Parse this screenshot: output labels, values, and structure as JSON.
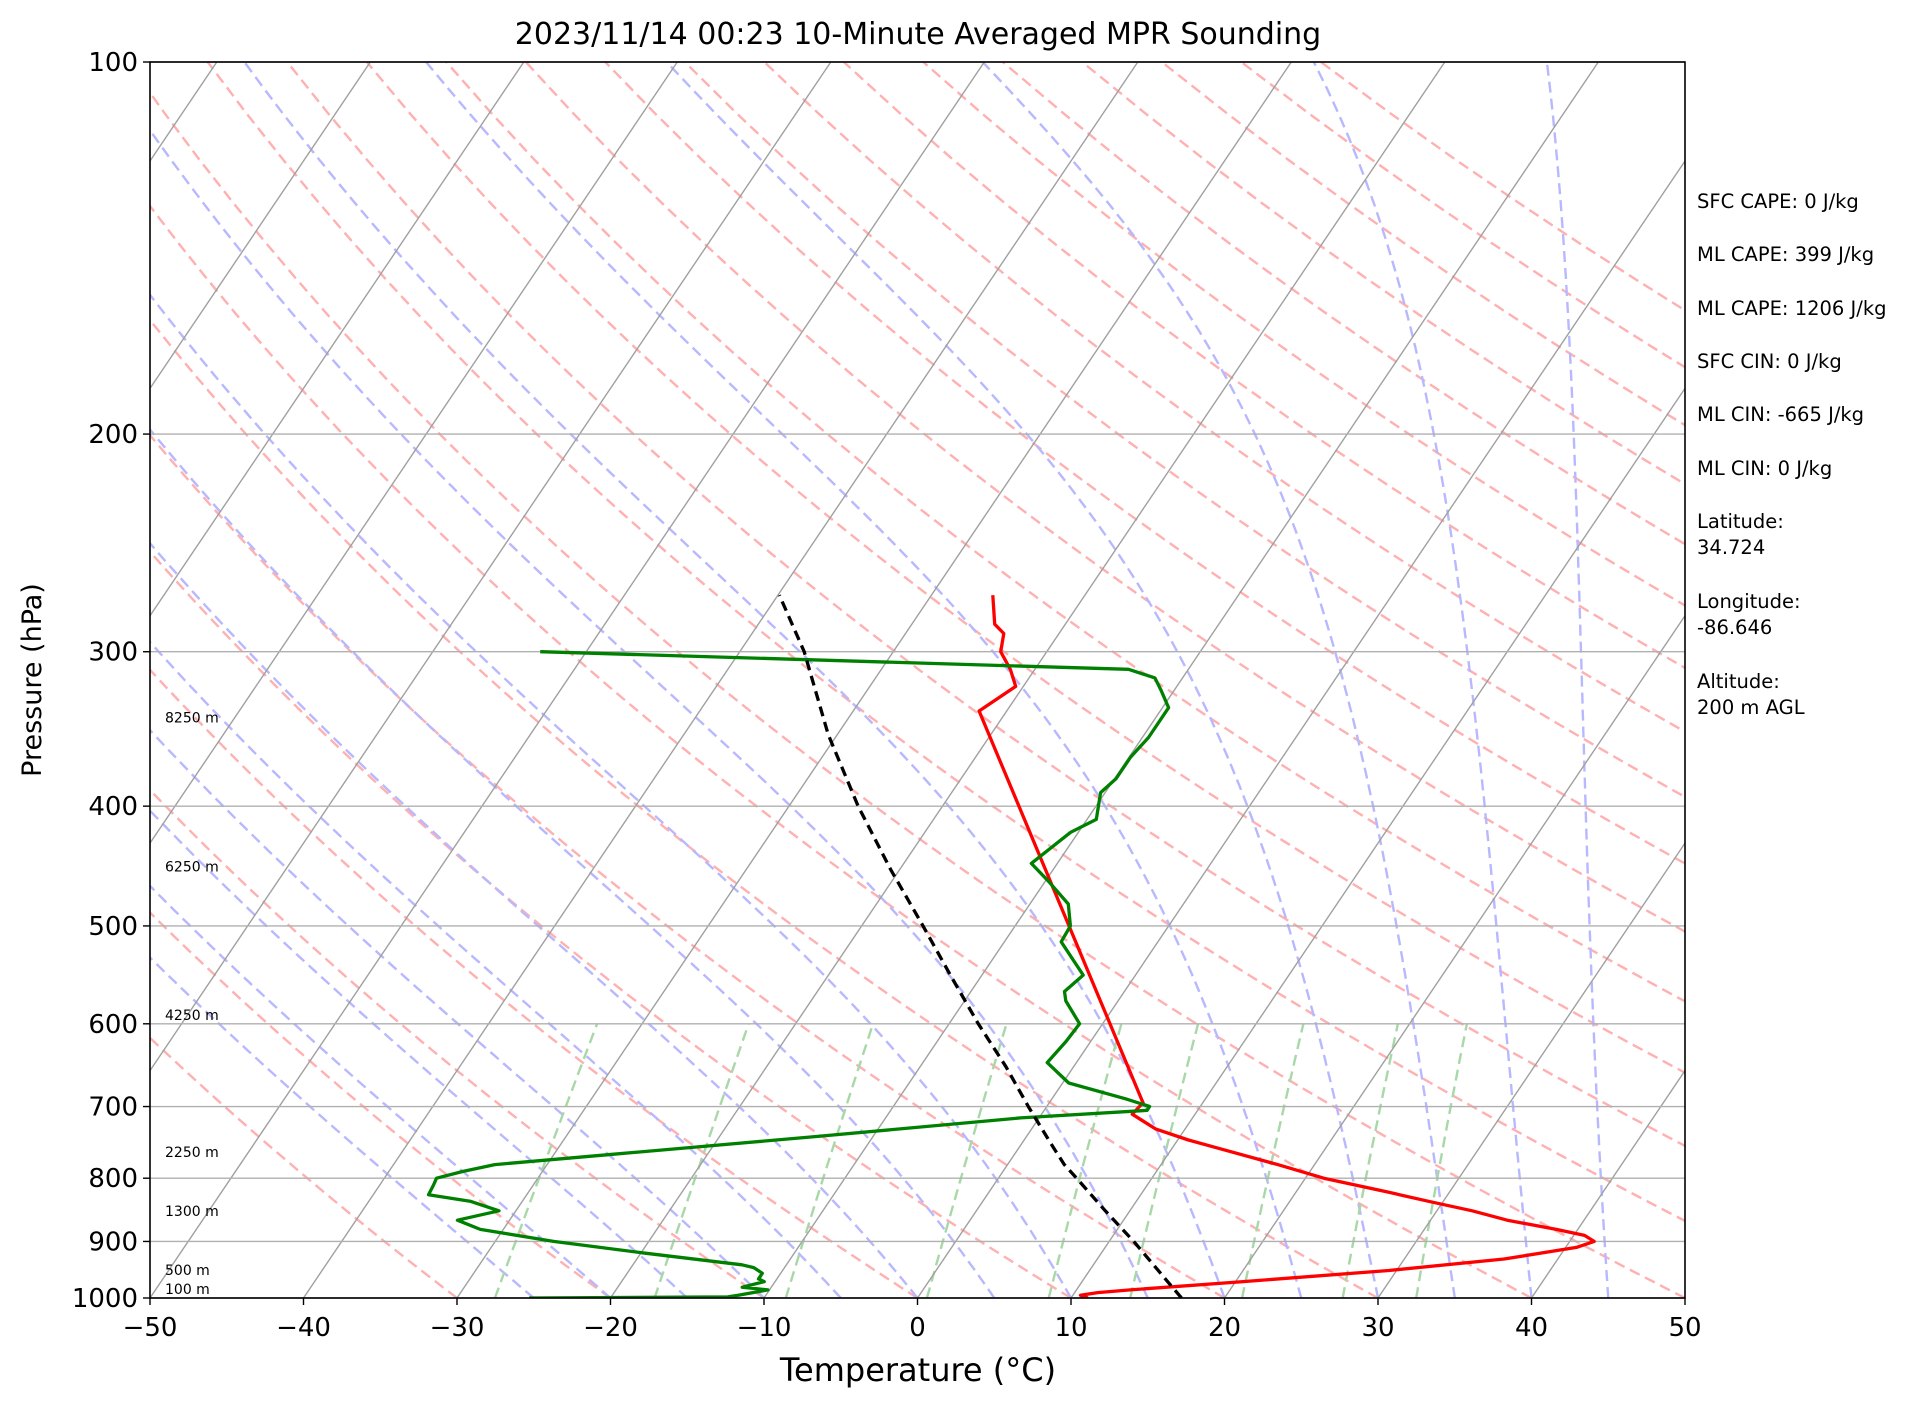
{
  "chart_data": {
    "type": "line",
    "title": "2023/11/14 00:23 10-Minute Averaged MPR Sounding",
    "xlabel": "Temperature (°C)",
    "ylabel": "Pressure (hPa)",
    "xlim": [
      -50,
      50
    ],
    "ylim": [
      1000,
      100
    ],
    "y_scale": "log",
    "skew": "skew-T log-P",
    "grid": "on",
    "x_ticks": [
      "−50",
      "−40",
      "−30",
      "−20",
      "−10",
      "0",
      "10",
      "20",
      "30",
      "40",
      "50"
    ],
    "y_ticks": [
      "100",
      "200",
      "300",
      "400",
      "500",
      "600",
      "700",
      "800",
      "900",
      "1000"
    ],
    "height_labels": [
      {
        "pressure": 1000,
        "text": "100 m"
      },
      {
        "pressure": 965,
        "text": "500 m"
      },
      {
        "pressure": 865,
        "text": "1300 m"
      },
      {
        "pressure": 775,
        "text": "2250 m"
      },
      {
        "pressure": 600,
        "text": "4250 m"
      },
      {
        "pressure": 455,
        "text": "6250 m"
      },
      {
        "pressure": 345,
        "text": "8250 m"
      }
    ],
    "series": [
      {
        "color": "#ff0000",
        "description": "temperature profile",
        "pressure": [
          1000,
          995,
          990,
          985,
          970,
          950,
          930,
          910,
          900,
          890,
          880,
          865,
          850,
          835,
          820,
          800,
          780,
          760,
          745,
          730,
          710,
          695,
          335,
          320,
          310,
          300,
          290,
          285,
          270
        ],
        "temperature": [
          11.1,
          10.5,
          11.5,
          13.5,
          20.5,
          29.5,
          36.5,
          40.7,
          41.6,
          40.7,
          38.6,
          35.0,
          32.3,
          29.0,
          25.8,
          21.2,
          17.6,
          13.7,
          10.7,
          8.1,
          5.9,
          6.1,
          -21.8,
          -20.5,
          -21.6,
          -23.0,
          -23.6,
          -24.6,
          -26.0
        ]
      },
      {
        "color": "#008000",
        "description": "dewpoint profile",
        "pressure": [
          1000,
          998,
          995,
          985,
          980,
          970,
          965,
          955,
          945,
          940,
          920,
          900,
          880,
          865,
          850,
          835,
          825,
          810,
          800,
          790,
          780,
          765,
          740,
          715,
          705,
          700,
          690,
          670,
          645,
          620,
          600,
          575,
          565,
          548,
          515,
          500,
          480,
          460,
          445,
          420,
          410,
          390,
          380,
          365,
          352,
          333,
          322,
          315,
          310,
          300
        ],
        "temperature": [
          -25.3,
          -12.4,
          -11.8,
          -10.1,
          -11.9,
          -10.7,
          -11.2,
          -11.2,
          -12.0,
          -12.9,
          -19.7,
          -26.2,
          -31.5,
          -33.4,
          -31.1,
          -33.4,
          -36.4,
          -36.5,
          -36.6,
          -35.2,
          -33.4,
          -26.1,
          -13.6,
          -1.2,
          6.7,
          6.7,
          4.8,
          0.4,
          -1.9,
          -1.6,
          -1.5,
          -3.4,
          -3.9,
          -3.4,
          -6.3,
          -6.4,
          -7.5,
          -9.8,
          -11.7,
          -10.5,
          -9.4,
          -10.3,
          -9.9,
          -9.9,
          -9.6,
          -9.6,
          -10.9,
          -11.8,
          -13.9,
          -53.0
        ]
      },
      {
        "color": "#000000",
        "dashed": true,
        "description": "parcel path",
        "pressure": [
          1000,
          900,
          850,
          800,
          780,
          750,
          700,
          650,
          600,
          550,
          500,
          450,
          400,
          350,
          300,
          270
        ],
        "temperature": [
          17.2,
          11.6,
          8.4,
          5.1,
          3.7,
          1.9,
          -1.2,
          -4.4,
          -8.1,
          -11.9,
          -16.0,
          -20.6,
          -25.5,
          -30.6,
          -35.8,
          -39.9
        ]
      }
    ]
  },
  "sidebar": {
    "sfc_cape": "SFC CAPE: 0 J/kg",
    "ml_cape_1": "ML CAPE: 399 J/kg",
    "ml_cape_2": "ML CAPE: 1206 J/kg",
    "sfc_cin": "SFC CIN: 0 J/kg",
    "ml_cin_1": "ML CIN: -665 J/kg",
    "ml_cin_2": "ML CIN: 0 J/kg",
    "latitude_label": "Latitude:",
    "latitude_value": "34.724",
    "longitude_label": "Longitude:",
    "longitude_value": "-86.646",
    "altitude_label": "Altitude:",
    "altitude_value": "200 m AGL"
  },
  "colors": {
    "isotherm": "#a0a0a0",
    "dry_adiabat": "#ffb0b0",
    "moist_adiabat": "#b8b8ff",
    "mixing_ratio": "#a8d8a8"
  }
}
